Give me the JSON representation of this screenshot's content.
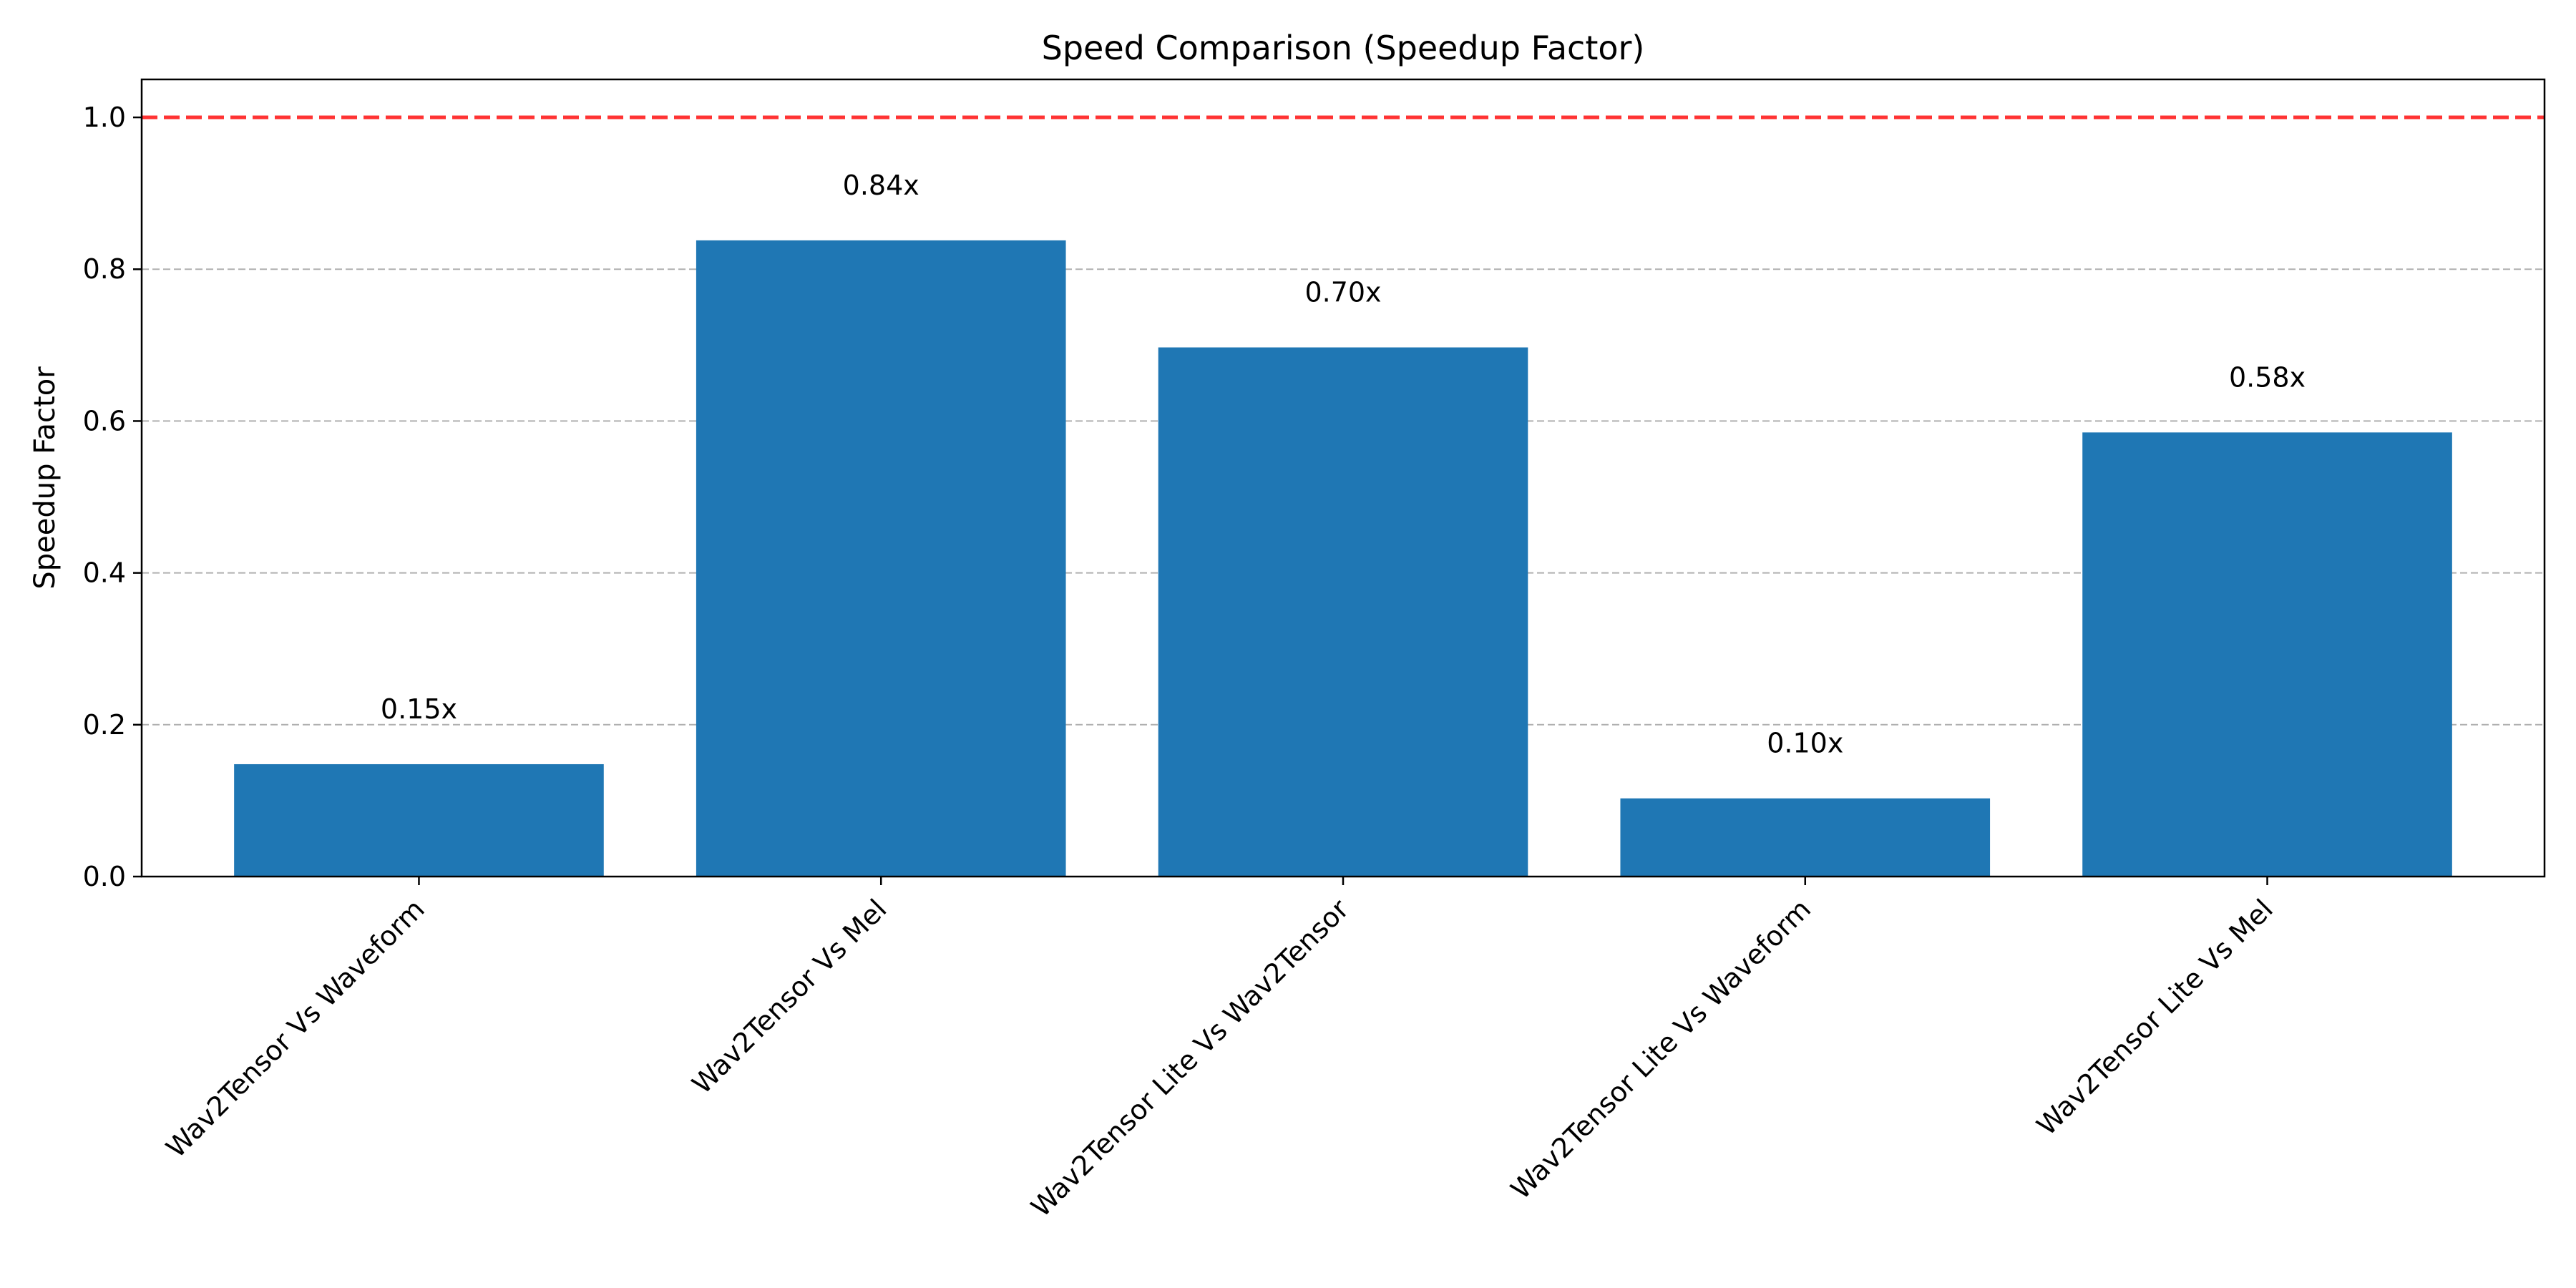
{
  "chart_data": {
    "type": "bar",
    "title": "Speed Comparison (Speedup Factor)",
    "xlabel": "",
    "ylabel": "Speedup Factor",
    "categories": [
      "Wav2Tensor Vs Waveform",
      "Wav2Tensor Vs Mel",
      "Wav2Tensor Lite Vs Wav2Tensor",
      "Wav2Tensor Lite Vs Waveform",
      "Wav2Tensor Lite Vs Mel"
    ],
    "values": [
      0.148,
      0.838,
      0.697,
      0.103,
      0.585
    ],
    "data_labels": [
      "0.15x",
      "0.84x",
      "0.70x",
      "0.10x",
      "0.58x"
    ],
    "ylim": [
      0,
      1.05
    ],
    "yticks": [
      0.0,
      0.2,
      0.4,
      0.6,
      0.8,
      1.0
    ],
    "ytick_labels": [
      "0.0",
      "0.2",
      "0.4",
      "0.6",
      "0.8",
      "1.0"
    ],
    "reference_line": {
      "value": 1.0,
      "color": "#ff3333",
      "style": "dashed"
    },
    "grid": {
      "axis": "y",
      "style": "dashed",
      "color": "#b0b0b0"
    },
    "bar_color": "#1f77b4",
    "legend": "none"
  }
}
